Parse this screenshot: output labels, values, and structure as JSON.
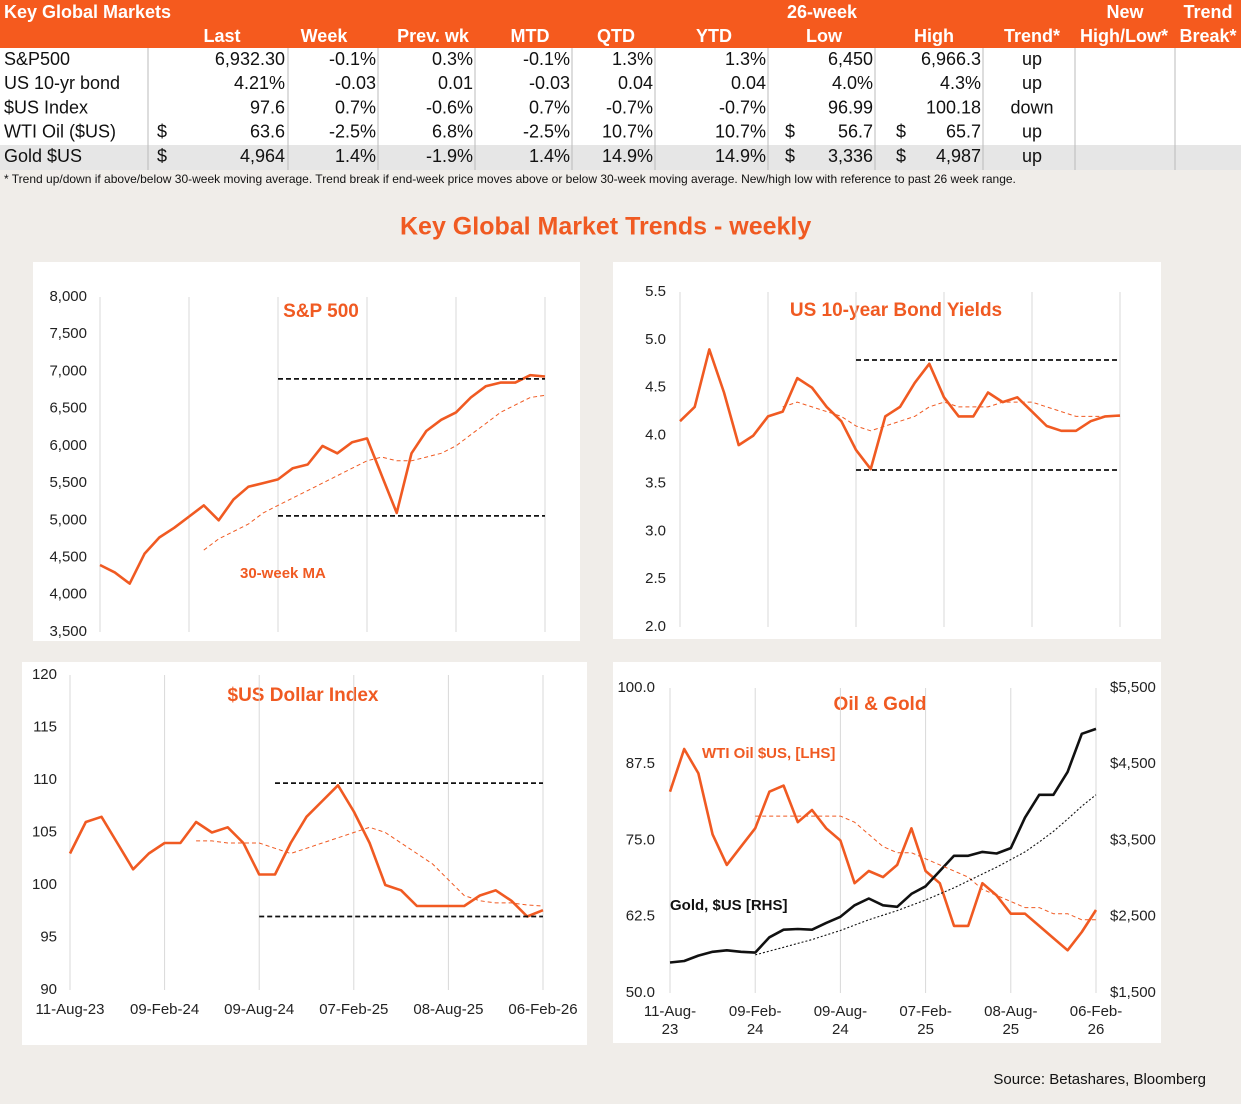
{
  "table": {
    "title": "Key Global Markets",
    "group_headers": [
      "26-week",
      "New",
      "Trend"
    ],
    "columns": [
      "Last",
      "Week",
      "Prev. wk",
      "MTD",
      "QTD",
      "YTD",
      "Low",
      "High",
      "Trend*",
      "High/Low*",
      "Break*"
    ],
    "rows": [
      {
        "name": "S&P500",
        "cells": [
          "6,932.30",
          "-0.1%",
          "0.3%",
          "-0.1%",
          "1.3%",
          "1.3%",
          "6,450",
          "6,966.3",
          "up"
        ]
      },
      {
        "name": "US 10-yr bond",
        "cells": [
          "4.21%",
          "-0.03",
          "0.01",
          "-0.03",
          "0.04",
          "0.04",
          "4.0%",
          "4.3%",
          "up"
        ]
      },
      {
        "name": "$US Index",
        "cells": [
          "97.6",
          "0.7%",
          "-0.6%",
          "0.7%",
          "-0.7%",
          "-0.7%",
          "96.99",
          "100.18",
          "down"
        ]
      },
      {
        "name": "WTI Oil ($US)",
        "currency": "$",
        "cells": [
          "63.6",
          "-2.5%",
          "6.8%",
          "-2.5%",
          "10.7%",
          "10.7%",
          "56.7",
          "65.7",
          "up"
        ]
      },
      {
        "name": "Gold $US",
        "currency": "$",
        "cells": [
          "4,964",
          "1.4%",
          "-1.9%",
          "1.4%",
          "14.9%",
          "14.9%",
          "3,336",
          "4,987",
          "up"
        ]
      }
    ],
    "footnote": "*  Trend up/down if above/below 30-week moving average. Trend break if end-week price moves above or below 30-week moving average.  New/high low with reference to past 26 week range."
  },
  "section_title": "Key Global Market Trends - weekly",
  "source": "Source:  Betashares, Bloomberg",
  "chart_data": [
    {
      "type": "line",
      "title": "S&P 500",
      "grid": "x",
      "ylim": [
        3500,
        8000
      ],
      "yticks": [
        {
          "value": 3500,
          "label": "3,500"
        },
        {
          "value": 4000,
          "label": "4,000"
        },
        {
          "value": 4500,
          "label": "4,500"
        },
        {
          "value": 5000,
          "label": "5,000"
        },
        {
          "value": 5500,
          "label": "5,500"
        },
        {
          "value": 6000,
          "label": "6,000"
        },
        {
          "value": 6500,
          "label": "6,500"
        },
        {
          "value": 7000,
          "label": "7,000"
        },
        {
          "value": 7500,
          "label": "7,500"
        },
        {
          "value": 8000,
          "label": "8,000"
        }
      ],
      "series": [
        {
          "color": "#f05a22",
          "style": "solid",
          "values": [
            4400,
            4300,
            4150,
            4550,
            4770,
            4900,
            5050,
            5200,
            5000,
            5280,
            5450,
            5500,
            5550,
            5700,
            5750,
            6000,
            5900,
            6050,
            6100,
            5600,
            5100,
            5900,
            6200,
            6350,
            6450,
            6650,
            6800,
            6850,
            6850,
            6950,
            6932
          ]
        },
        {
          "name": "30-week MA",
          "color": "#f05a22",
          "style": "ma",
          "values": [
            null,
            null,
            null,
            null,
            null,
            null,
            null,
            4600,
            4750,
            4850,
            4950,
            5100,
            5200,
            5300,
            5400,
            5500,
            5600,
            5700,
            5800,
            5850,
            5800,
            5800,
            5850,
            5900,
            6000,
            6150,
            6300,
            6450,
            6550,
            6650,
            6680
          ]
        },
        {
          "color": "#111111",
          "style": "range",
          "values": [
            null,
            null,
            null,
            null,
            null,
            null,
            null,
            null,
            null,
            null,
            null,
            null,
            6900,
            6900,
            6900,
            6900,
            6900,
            6900,
            6900,
            6900,
            6900,
            6900,
            6900,
            6900,
            6900,
            6900,
            6900,
            6900,
            6900,
            6900,
            6900
          ]
        },
        {
          "color": "#111111",
          "style": "range",
          "values": [
            null,
            null,
            null,
            null,
            null,
            null,
            null,
            null,
            null,
            null,
            null,
            null,
            5060,
            5060,
            5060,
            5060,
            5060,
            5060,
            5060,
            5060,
            5060,
            5060,
            5060,
            5060,
            5060,
            5060,
            5060,
            5060,
            5060,
            5060,
            5060
          ]
        }
      ]
    },
    {
      "type": "line",
      "title": "US 10-year Bond Yields",
      "grid": "x",
      "ylim": [
        2.0,
        5.5
      ],
      "yticks": [
        {
          "value": 2,
          "label": "2.0"
        },
        2.5,
        {
          "value": 3,
          "label": "3.0"
        },
        3.5,
        {
          "value": 4,
          "label": "4.0"
        },
        4.5,
        {
          "value": 5,
          "label": "5.0"
        },
        5.5
      ],
      "series": [
        {
          "color": "#f05a22",
          "style": "solid",
          "values": [
            4.15,
            4.3,
            4.9,
            4.45,
            3.9,
            4.0,
            4.2,
            4.25,
            4.6,
            4.5,
            4.3,
            4.15,
            3.85,
            3.65,
            4.2,
            4.3,
            4.55,
            4.75,
            4.4,
            4.2,
            4.2,
            4.45,
            4.35,
            4.4,
            4.25,
            4.1,
            4.05,
            4.05,
            4.15,
            4.2,
            4.21
          ]
        },
        {
          "color": "#f05a22",
          "style": "ma",
          "values": [
            null,
            null,
            null,
            null,
            null,
            null,
            null,
            4.3,
            4.35,
            4.3,
            4.25,
            4.2,
            4.1,
            4.05,
            4.1,
            4.15,
            4.2,
            4.3,
            4.35,
            4.3,
            4.3,
            4.3,
            4.35,
            4.35,
            4.35,
            4.3,
            4.25,
            4.2,
            4.2,
            4.2,
            4.2
          ]
        },
        {
          "color": "#111111",
          "style": "range",
          "values": [
            null,
            null,
            null,
            null,
            null,
            null,
            null,
            null,
            null,
            null,
            null,
            null,
            4.79,
            4.79,
            4.79,
            4.79,
            4.79,
            4.79,
            4.79,
            4.79,
            4.79,
            4.79,
            4.79,
            4.79,
            4.79,
            4.79,
            4.79,
            4.79,
            4.79,
            4.79,
            4.79
          ]
        },
        {
          "color": "#111111",
          "style": "range",
          "values": [
            null,
            null,
            null,
            null,
            null,
            null,
            null,
            null,
            null,
            null,
            null,
            null,
            3.64,
            3.64,
            3.64,
            3.64,
            3.64,
            3.64,
            3.64,
            3.64,
            3.64,
            3.64,
            3.64,
            3.64,
            3.64,
            3.64,
            3.64,
            3.64,
            3.64,
            3.64,
            3.64
          ]
        }
      ]
    },
    {
      "type": "line",
      "title": "$US Dollar Index",
      "grid": "x",
      "categories": [
        "11-Aug-23",
        null,
        null,
        null,
        null,
        null,
        "09-Feb-24",
        null,
        null,
        null,
        null,
        null,
        "09-Aug-24",
        null,
        null,
        null,
        null,
        null,
        "07-Feb-25",
        null,
        null,
        null,
        null,
        null,
        "08-Aug-25",
        null,
        null,
        null,
        null,
        null,
        "06-Feb-26"
      ],
      "ylim": [
        90,
        120
      ],
      "yticks": [
        90,
        95,
        100,
        105,
        110,
        115,
        120
      ],
      "series": [
        {
          "color": "#f05a22",
          "style": "solid",
          "values": [
            103,
            106,
            106.5,
            104,
            101.5,
            103,
            104,
            104,
            106,
            105,
            105.5,
            104,
            101,
            101,
            104,
            106.5,
            108,
            109.5,
            107,
            104,
            100,
            99.5,
            98,
            98,
            98,
            98,
            99,
            99.5,
            98.5,
            97,
            97.6
          ]
        },
        {
          "color": "#f05a22",
          "style": "ma",
          "values": [
            null,
            null,
            null,
            null,
            null,
            null,
            null,
            null,
            104.2,
            104.2,
            104,
            104,
            104,
            103.5,
            103,
            103.5,
            104,
            104.5,
            105,
            105.5,
            105,
            104,
            103,
            102,
            100.5,
            99,
            98.5,
            98.3,
            98.3,
            98.1,
            98
          ]
        },
        {
          "color": "#111111",
          "style": "range",
          "values": [
            null,
            null,
            null,
            null,
            null,
            null,
            null,
            null,
            null,
            null,
            null,
            null,
            null,
            109.7,
            109.7,
            109.7,
            109.7,
            109.7,
            109.7,
            109.7,
            109.7,
            109.7,
            109.7,
            109.7,
            109.7,
            109.7,
            109.7,
            109.7,
            109.7,
            109.7,
            109.7
          ]
        },
        {
          "color": "#111111",
          "style": "range",
          "values": [
            null,
            null,
            null,
            null,
            null,
            null,
            null,
            null,
            null,
            null,
            null,
            null,
            97.0,
            97.0,
            97.0,
            97.0,
            97.0,
            97.0,
            97.0,
            97.0,
            97.0,
            97.0,
            97.0,
            97.0,
            97.0,
            97.0,
            97.0,
            97.0,
            97.0,
            97.0,
            97.0
          ]
        }
      ]
    },
    {
      "type": "line",
      "title": "Oil & Gold",
      "grid": "x",
      "categories": [
        "11-Aug-23",
        null,
        null,
        null,
        null,
        null,
        "09-Feb-24",
        null,
        null,
        null,
        null,
        null,
        "09-Aug-24",
        null,
        null,
        null,
        null,
        null,
        "07-Feb-25",
        null,
        null,
        null,
        null,
        null,
        "08-Aug-25",
        null,
        null,
        null,
        null,
        null,
        "06-Feb-26"
      ],
      "ylim": [
        50,
        100
      ],
      "yticks": [
        {
          "value": 50,
          "label": "50.0"
        },
        62.5,
        {
          "value": 75,
          "label": "75.0"
        },
        87.5,
        {
          "value": 100,
          "label": "100.0"
        }
      ],
      "y2lim": [
        1500,
        5500
      ],
      "y2ticks": [
        {
          "value": 1500,
          "label": "$1,500"
        },
        {
          "value": 2500,
          "label": "$2,500"
        },
        {
          "value": 3500,
          "label": "$3,500"
        },
        {
          "value": 4500,
          "label": "$4,500"
        },
        {
          "value": 5500,
          "label": "$5,500"
        }
      ],
      "series": [
        {
          "name": "WTI Oil $US, [LHS]",
          "color": "#f05a22",
          "style": "solid",
          "values": [
            83,
            90,
            86,
            76,
            71,
            74,
            77,
            83,
            84,
            78,
            80,
            77,
            75,
            68,
            70,
            69,
            71,
            77,
            70,
            68,
            61,
            61,
            68,
            66,
            63,
            63,
            61,
            59,
            57,
            60,
            63.6
          ]
        },
        {
          "name": "Gold, $US [RHS]",
          "color": "#111111",
          "style": "solid",
          "axis": "y2",
          "values": [
            1900,
            1920,
            1990,
            2040,
            2060,
            2040,
            2030,
            2230,
            2330,
            2340,
            2330,
            2420,
            2500,
            2650,
            2740,
            2650,
            2630,
            2800,
            2900,
            3100,
            3300,
            3300,
            3350,
            3330,
            3400,
            3800,
            4100,
            4100,
            4400,
            4900,
            4964
          ]
        },
        {
          "color": "#f05a22",
          "style": "ma",
          "values": [
            null,
            null,
            null,
            null,
            null,
            null,
            79,
            79,
            79,
            79,
            79,
            79,
            79,
            78,
            76,
            74,
            73,
            73,
            72,
            71,
            70,
            69,
            67,
            66,
            65,
            64,
            64,
            63,
            63,
            62,
            62
          ]
        },
        {
          "color": "#111111",
          "style": "dot",
          "axis": "y2",
          "values": [
            null,
            null,
            null,
            null,
            null,
            null,
            2000,
            2050,
            2100,
            2150,
            2200,
            2260,
            2320,
            2390,
            2460,
            2520,
            2580,
            2650,
            2720,
            2800,
            2880,
            2970,
            3060,
            3150,
            3250,
            3350,
            3480,
            3620,
            3780,
            3950,
            4100
          ]
        }
      ]
    }
  ]
}
